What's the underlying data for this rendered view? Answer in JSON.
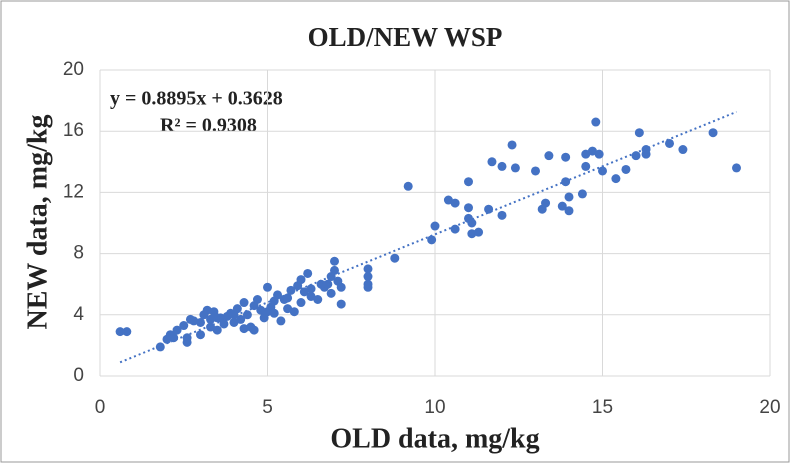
{
  "chart_data": {
    "type": "scatter",
    "title": "OLD/NEW WSP",
    "x_label": "OLD data, mg/kg",
    "y_label": "NEW data, mg/kg",
    "annotations": [
      "y = 0.8895x + 0.3628",
      "R² = 0.9308"
    ],
    "color": "#4472c4",
    "grid": true,
    "xlim": [
      0,
      20
    ],
    "xticks": [
      0,
      5,
      10,
      15,
      20
    ],
    "ylim": [
      0,
      20
    ],
    "yticks": [
      0,
      4,
      8,
      12,
      16,
      20
    ],
    "trendline": {
      "slope": 0.8895,
      "intercept": 0.3628
    },
    "x": [
      0.6,
      0.8,
      1.8,
      2.0,
      2.1,
      2.2,
      2.3,
      2.5,
      2.6,
      2.6,
      2.7,
      3.0,
      3.0,
      3.1,
      3.2,
      3.3,
      3.4,
      3.5,
      3.6,
      3.7,
      3.8,
      3.9,
      4.0,
      4.1,
      4.2,
      4.3,
      4.4,
      4.5,
      4.6,
      4.7,
      4.8,
      4.9,
      5.0,
      5.1,
      5.2,
      5.3,
      5.4,
      5.5,
      5.6,
      5.7,
      5.8,
      5.9,
      6.0,
      6.0,
      6.1,
      6.2,
      6.3,
      6.5,
      6.7,
      6.8,
      6.9,
      7.0,
      7.0,
      7.1,
      7.2,
      7.2,
      8.0,
      8.0,
      8.0,
      8.0,
      8.8,
      9.2,
      9.9,
      10.0,
      10.4,
      10.6,
      10.6,
      11.0,
      11.0,
      11.0,
      11.1,
      11.1,
      11.3,
      11.6,
      11.7,
      12.0,
      12.0,
      12.3,
      12.4,
      13.0,
      13.2,
      13.3,
      13.4,
      13.8,
      13.9,
      13.9,
      14.0,
      14.0,
      14.4,
      14.5,
      14.5,
      14.7,
      14.8,
      14.9,
      15.0,
      15.4,
      15.7,
      16.0,
      16.1,
      16.3,
      16.3,
      17.0,
      17.4,
      18.3,
      19.0,
      5.0,
      4.0,
      3.5,
      4.6,
      5.6,
      6.3,
      6.9,
      4.3,
      5.2,
      3.3,
      2.8,
      6.6
    ],
    "values": [
      2.9,
      2.9,
      1.9,
      2.4,
      2.7,
      2.5,
      3.0,
      3.3,
      2.2,
      2.5,
      3.7,
      2.7,
      3.5,
      4.0,
      4.3,
      3.2,
      4.2,
      3.0,
      3.8,
      3.4,
      3.9,
      4.1,
      3.5,
      4.4,
      3.7,
      3.1,
      4.0,
      3.2,
      4.6,
      5.0,
      4.3,
      3.8,
      5.8,
      4.5,
      4.9,
      5.3,
      3.6,
      5.0,
      4.4,
      5.6,
      4.2,
      5.9,
      6.3,
      4.8,
      5.5,
      6.7,
      5.2,
      5.0,
      5.8,
      6.0,
      5.4,
      6.9,
      7.5,
      6.2,
      4.7,
      5.8,
      7.0,
      6.5,
      5.8,
      6.0,
      7.7,
      12.4,
      8.9,
      9.8,
      11.5,
      11.3,
      9.6,
      10.3,
      12.7,
      11.0,
      10.0,
      9.3,
      9.4,
      10.9,
      14.0,
      13.7,
      10.5,
      15.1,
      13.6,
      13.4,
      10.9,
      11.3,
      14.4,
      11.1,
      12.7,
      14.3,
      10.8,
      11.7,
      11.9,
      13.7,
      14.5,
      14.7,
      16.6,
      14.5,
      13.4,
      12.9,
      13.5,
      14.4,
      15.9,
      14.8,
      14.5,
      15.2,
      14.8,
      15.9,
      13.6,
      4.2,
      4.0,
      3.8,
      3.0,
      5.1,
      5.7,
      6.5,
      4.8,
      4.1,
      3.7,
      3.6,
      6.0
    ]
  }
}
